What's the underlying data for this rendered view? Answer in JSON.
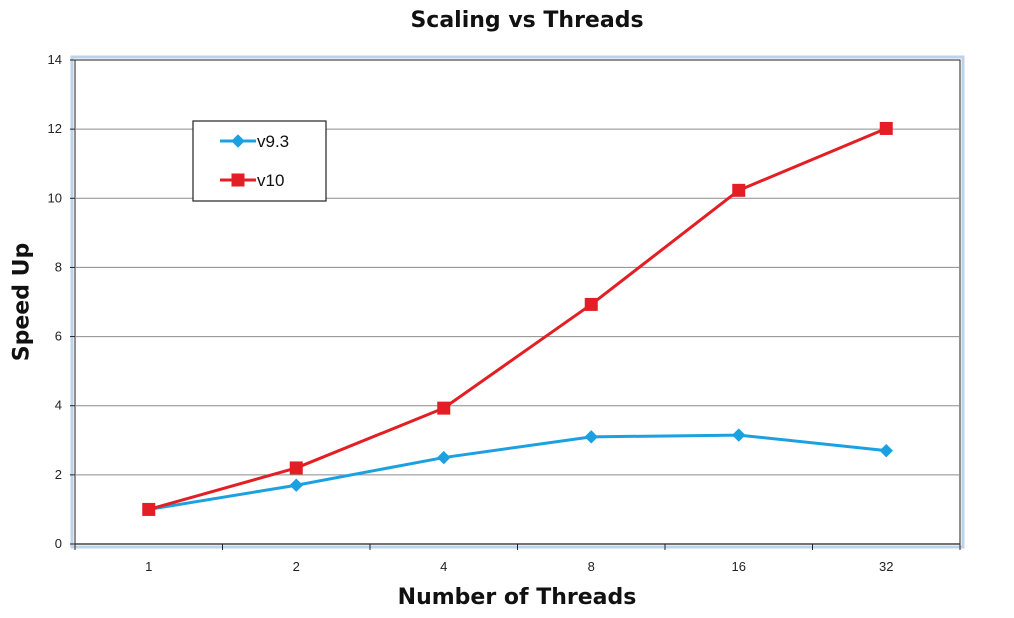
{
  "chart_data": {
    "type": "line",
    "title": "Scaling vs Threads",
    "xlabel": "Number of Threads",
    "ylabel": "Speed Up",
    "categories": [
      "1",
      "2",
      "4",
      "8",
      "16",
      "32"
    ],
    "ylim": [
      0,
      14
    ],
    "yticks": [
      0,
      2,
      4,
      6,
      8,
      10,
      12,
      14
    ],
    "grid": true,
    "legend_position": "top-left",
    "series": [
      {
        "name": "v9.3",
        "values": [
          1.0,
          1.7,
          2.5,
          3.1,
          3.15,
          2.7
        ],
        "color": "#1ba1e2",
        "marker": "diamond"
      },
      {
        "name": "v10",
        "values": [
          1.0,
          2.2,
          3.93,
          6.93,
          10.23,
          12.02
        ],
        "color": "#e31e24",
        "marker": "square"
      }
    ]
  }
}
